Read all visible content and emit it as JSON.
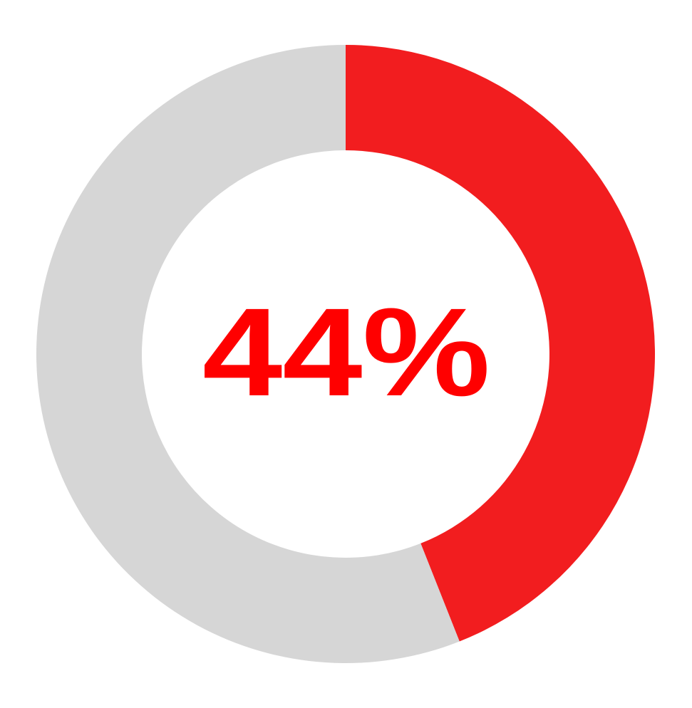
{
  "chart_data": {
    "type": "pie",
    "variant": "donut",
    "title": "",
    "center_label": "44%",
    "slices": [
      {
        "label": "",
        "value": 44,
        "color": "#F21D1F"
      },
      {
        "label": "",
        "value": 56,
        "color": "#D6D6D6"
      }
    ],
    "start_angle": "top",
    "direction": "clockwise",
    "legend": "none"
  },
  "colors": {
    "accent": "#F21D1F",
    "remainder": "#D6D6D6",
    "label": "#FF0000",
    "background": "#FFFFFF"
  }
}
